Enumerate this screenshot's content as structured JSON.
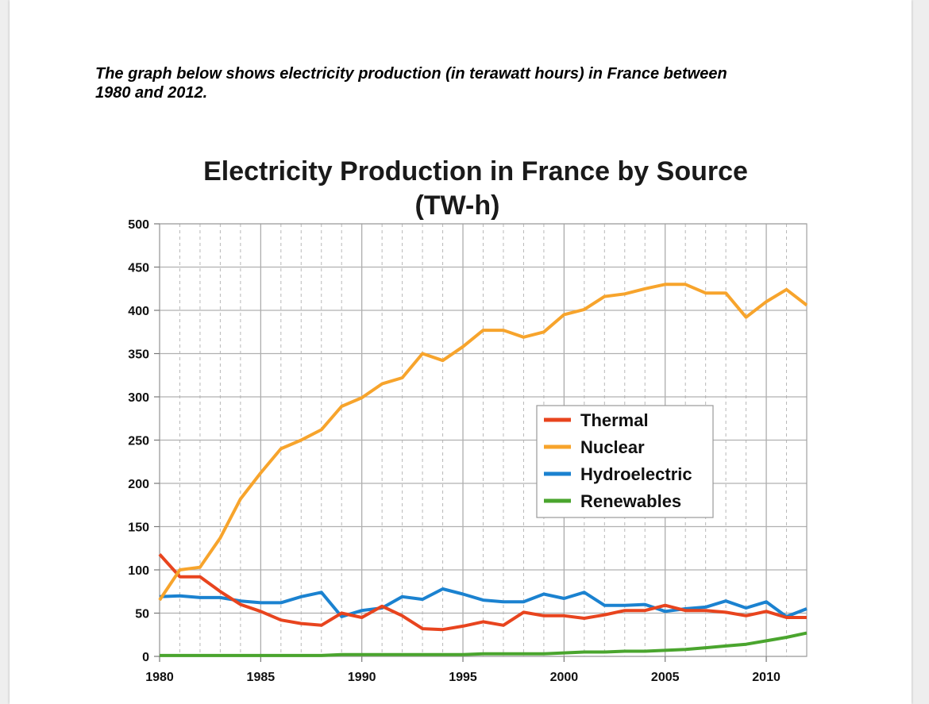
{
  "prompt": {
    "line1": "The graph below shows electricity production (in terawatt hours) in France between",
    "line2": "1980 and 2012."
  },
  "chart_data": {
    "type": "line",
    "title_line1": "Electricity Production in France by Source",
    "title_line2": "(TW-h)",
    "xlabel": "",
    "ylabel": "",
    "xlim": [
      1980,
      2012
    ],
    "ylim": [
      0,
      500
    ],
    "x_ticks": [
      1980,
      1985,
      1990,
      1995,
      2000,
      2005,
      2010
    ],
    "y_ticks": [
      0,
      50,
      100,
      150,
      200,
      250,
      300,
      350,
      400,
      450,
      500
    ],
    "grid": true,
    "legend_position": "center-right",
    "x": [
      1980,
      1981,
      1982,
      1983,
      1984,
      1985,
      1986,
      1987,
      1988,
      1989,
      1990,
      1991,
      1992,
      1993,
      1994,
      1995,
      1996,
      1997,
      1998,
      1999,
      2000,
      2001,
      2002,
      2003,
      2004,
      2005,
      2006,
      2007,
      2008,
      2009,
      2010,
      2011,
      2012
    ],
    "series": [
      {
        "name": "Thermal",
        "color": "#e8441e",
        "values": [
          118,
          92,
          92,
          75,
          60,
          52,
          42,
          38,
          36,
          50,
          45,
          58,
          47,
          32,
          31,
          35,
          40,
          36,
          51,
          47,
          47,
          44,
          48,
          53,
          53,
          59,
          53,
          53,
          51,
          47,
          52,
          45,
          45
        ]
      },
      {
        "name": "Nuclear",
        "color": "#f7a42c",
        "values": [
          65,
          100,
          103,
          137,
          182,
          212,
          240,
          250,
          262,
          289,
          299,
          315,
          322,
          350,
          342,
          358,
          377,
          377,
          369,
          375,
          395,
          401,
          416,
          419,
          425,
          430,
          430,
          420,
          420,
          392,
          410,
          424,
          406
        ]
      },
      {
        "name": "Hydroelectric",
        "color": "#1b82d0",
        "values": [
          69,
          70,
          68,
          68,
          64,
          62,
          62,
          69,
          74,
          46,
          53,
          56,
          69,
          66,
          78,
          72,
          65,
          63,
          63,
          72,
          67,
          74,
          59,
          59,
          60,
          52,
          55,
          57,
          64,
          56,
          63,
          46,
          55
        ]
      },
      {
        "name": "Renewables",
        "color": "#4aa52e",
        "values": [
          1,
          1,
          1,
          1,
          1,
          1,
          1,
          1,
          1,
          2,
          2,
          2,
          2,
          2,
          2,
          2,
          3,
          3,
          3,
          3,
          4,
          5,
          5,
          6,
          6,
          7,
          8,
          10,
          12,
          14,
          18,
          22,
          27
        ]
      }
    ]
  }
}
